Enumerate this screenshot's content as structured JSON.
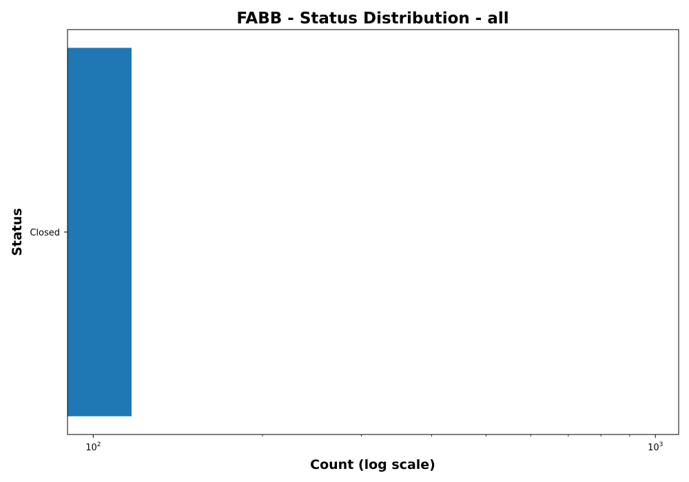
{
  "chart_data": {
    "type": "bar",
    "orientation": "horizontal",
    "title": "FABB - Status Distribution - all",
    "xlabel": "Count (log scale)",
    "ylabel": "Status",
    "x_scale": "log",
    "xlim": [
      90,
      1100
    ],
    "categories": [
      "Closed"
    ],
    "series": [
      {
        "values": [
          117
        ]
      }
    ],
    "x_major_ticks": [
      {
        "value": 100,
        "base": "10",
        "exp": "2"
      },
      {
        "value": 1000,
        "base": "10",
        "exp": "3"
      }
    ],
    "x_minor_ticks": [
      200,
      300,
      400,
      500,
      600,
      700,
      800,
      900
    ],
    "grid": false,
    "legend": "none",
    "colors": {
      "bar": "#1f77b4",
      "axis": "#000000"
    }
  }
}
